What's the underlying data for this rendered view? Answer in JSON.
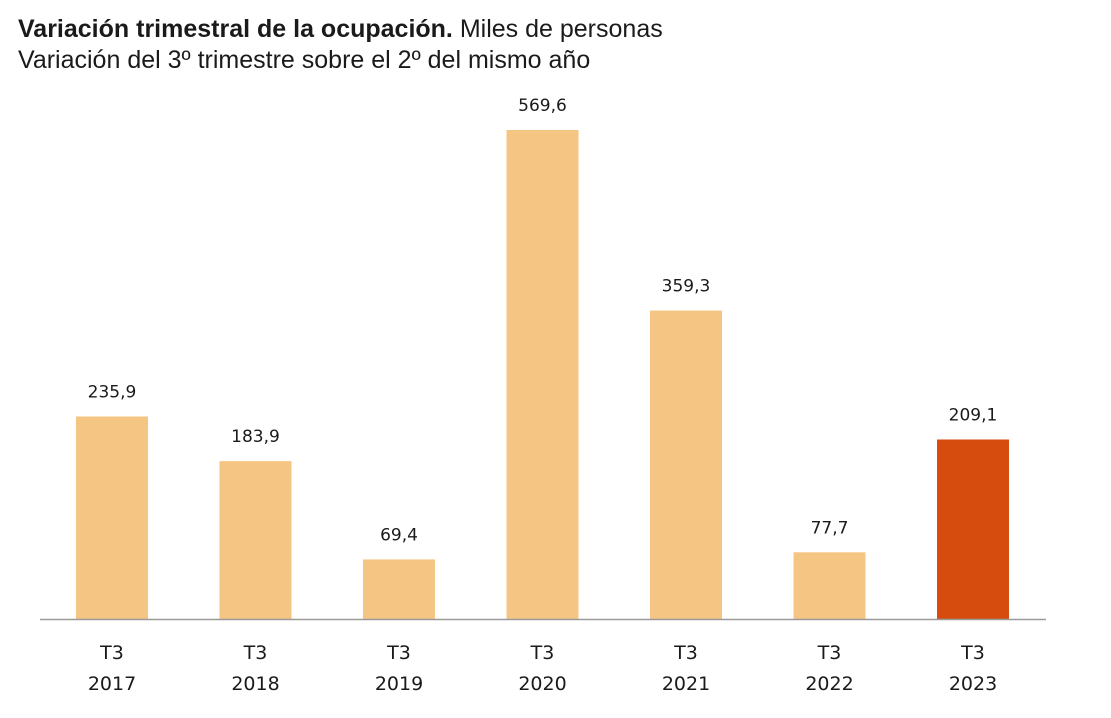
{
  "header": {
    "title_bold": "Variación trimestral de la ocupación.",
    "title_rest": " Miles de personas",
    "subtitle": "Variación del 3º trimestre sobre el 2º del mismo año"
  },
  "chart_data": {
    "type": "bar",
    "title": "Variación trimestral de la ocupación. Miles de personas",
    "subtitle": "Variación del 3º trimestre sobre el 2º del mismo año",
    "categories": [
      [
        "T3",
        "2017"
      ],
      [
        "T3",
        "2018"
      ],
      [
        "T3",
        "2019"
      ],
      [
        "T3",
        "2020"
      ],
      [
        "T3",
        "2021"
      ],
      [
        "T3",
        "2022"
      ],
      [
        "T3",
        "2023"
      ]
    ],
    "values": [
      235.9,
      183.9,
      69.4,
      569.6,
      359.3,
      77.7,
      209.1
    ],
    "value_labels": [
      "235,9",
      "183,9",
      "69,4",
      "569,6",
      "359,3",
      "77,7",
      "209,1"
    ],
    "colors": {
      "default": "#F5C584",
      "highlight": "#D64C0E",
      "axis": "#9a9a9a"
    },
    "highlight_index": 6,
    "ylim": [
      0,
      569.6
    ],
    "xlabel": "",
    "ylabel": "",
    "grid": false,
    "legend": "none"
  }
}
